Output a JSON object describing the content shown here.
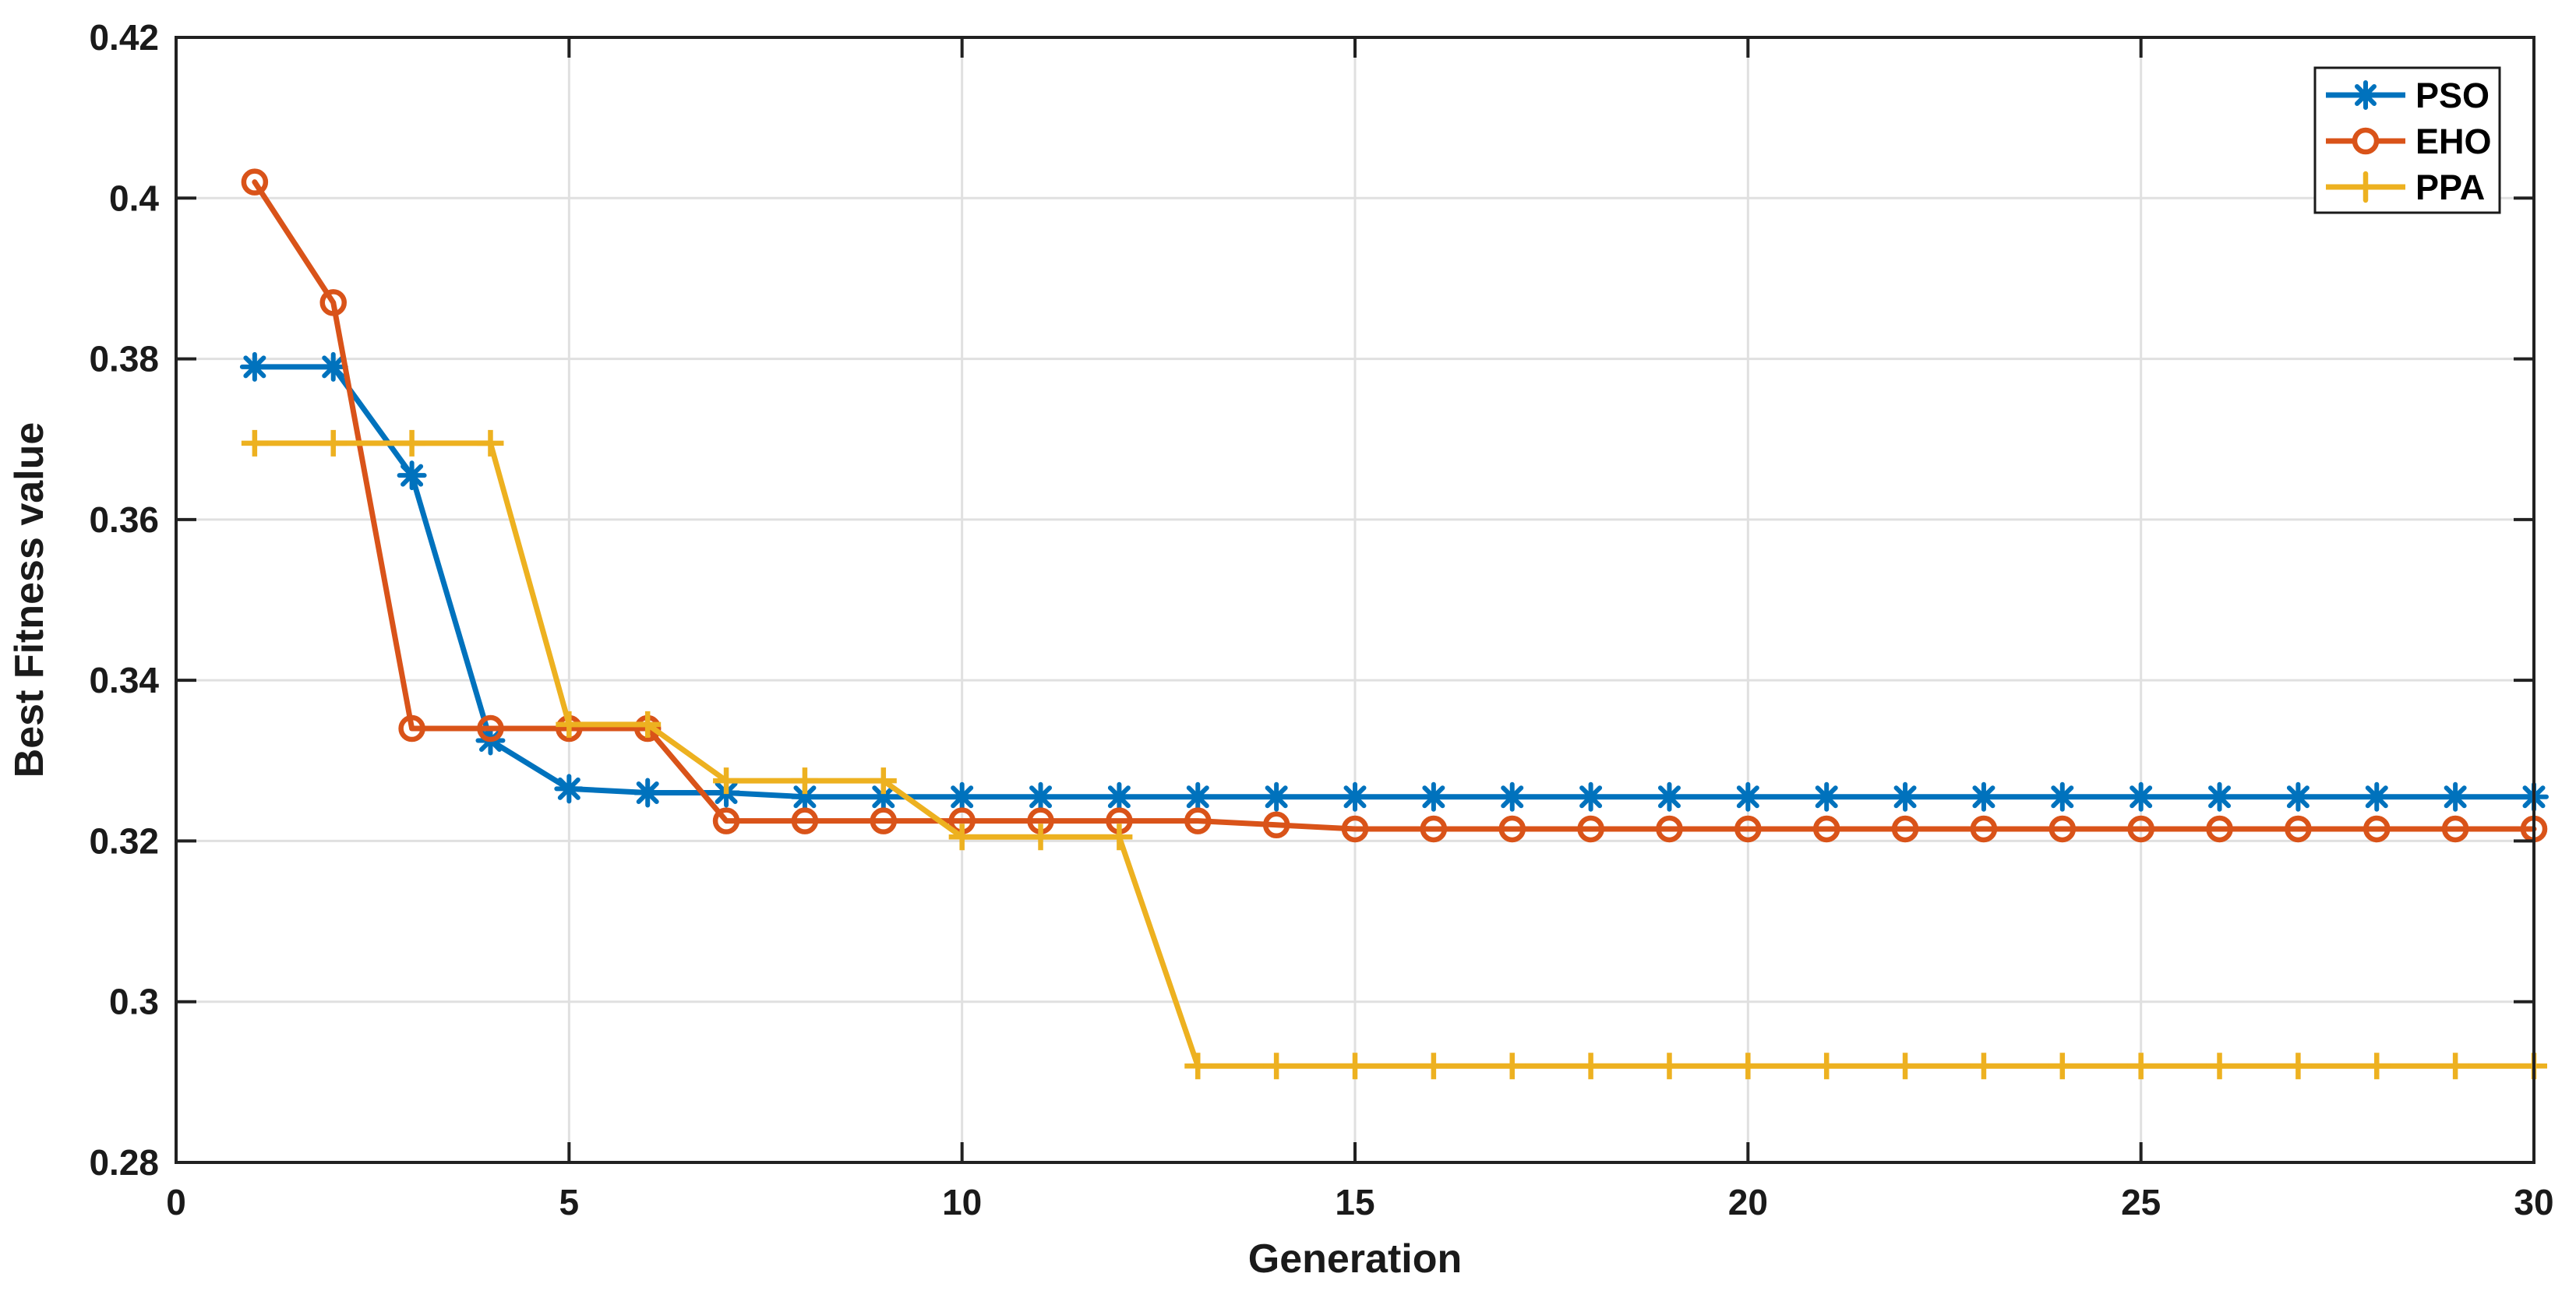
{
  "chart_data": {
    "type": "line",
    "title": "",
    "xlabel": "Generation",
    "ylabel": "Best Fitness value",
    "xlim": [
      0,
      30
    ],
    "ylim": [
      0.28,
      0.42
    ],
    "x_ticks": [
      0,
      5,
      10,
      15,
      20,
      25,
      30
    ],
    "x_tick_labels": [
      "0",
      "5",
      "10",
      "15",
      "20",
      "25",
      "30"
    ],
    "y_ticks": [
      0.28,
      0.3,
      0.32,
      0.34,
      0.36,
      0.38,
      0.4,
      0.42
    ],
    "y_tick_labels": [
      "0.28",
      "0.3",
      "0.32",
      "0.34",
      "0.36",
      "0.38",
      "0.4",
      "0.42"
    ],
    "grid": true,
    "legend_position": "top-right",
    "background_color": "#ffffff",
    "axis_color": "#212121",
    "grid_color": "#e0e0e0",
    "x": [
      1,
      2,
      3,
      4,
      5,
      6,
      7,
      8,
      9,
      10,
      11,
      12,
      13,
      14,
      15,
      16,
      17,
      18,
      19,
      20,
      21,
      22,
      23,
      24,
      25,
      26,
      27,
      28,
      29,
      30
    ],
    "series": [
      {
        "name": "PSO",
        "color": "#0072BD",
        "marker": "asterisk",
        "values": [
          0.379,
          0.379,
          0.3655,
          0.3325,
          0.3265,
          0.326,
          0.326,
          0.3255,
          0.3255,
          0.3255,
          0.3255,
          0.3255,
          0.3255,
          0.3255,
          0.3255,
          0.3255,
          0.3255,
          0.3255,
          0.3255,
          0.3255,
          0.3255,
          0.3255,
          0.3255,
          0.3255,
          0.3255,
          0.3255,
          0.3255,
          0.3255,
          0.3255,
          0.3255
        ]
      },
      {
        "name": "EHO",
        "color": "#D95319",
        "marker": "circle",
        "values": [
          0.402,
          0.387,
          0.334,
          0.334,
          0.334,
          0.334,
          0.3225,
          0.3225,
          0.3225,
          0.3225,
          0.3225,
          0.3225,
          0.3225,
          0.322,
          0.3215,
          0.3215,
          0.3215,
          0.3215,
          0.3215,
          0.3215,
          0.3215,
          0.3215,
          0.3215,
          0.3215,
          0.3215,
          0.3215,
          0.3215,
          0.3215,
          0.3215,
          0.3215
        ]
      },
      {
        "name": "PPA",
        "color": "#EDB120",
        "marker": "plus",
        "values": [
          0.3695,
          0.3695,
          0.3695,
          0.3695,
          0.3345,
          0.3345,
          0.3275,
          0.3275,
          0.3275,
          0.3205,
          0.3205,
          0.3205,
          0.292,
          0.292,
          0.292,
          0.292,
          0.292,
          0.292,
          0.292,
          0.292,
          0.292,
          0.292,
          0.292,
          0.292,
          0.292,
          0.292,
          0.292,
          0.292,
          0.292,
          0.292
        ]
      }
    ]
  }
}
